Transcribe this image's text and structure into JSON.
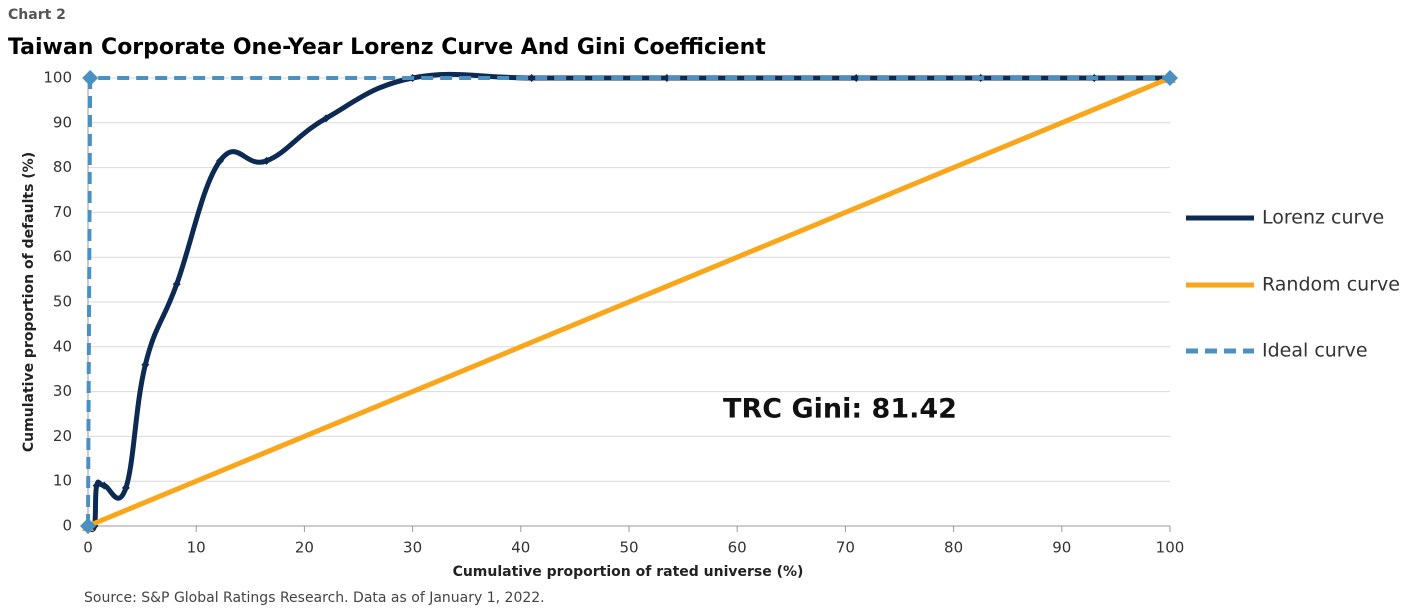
{
  "chart_data": {
    "type": "line",
    "kicker": "Chart 2",
    "title": "Taiwan Corporate One-Year Lorenz Curve And Gini Coefficient",
    "source": "Source: S&P Global Ratings Research. Data as of January 1, 2022.",
    "xlabel": "Cumulative proportion of rated universe (%)",
    "ylabel": "Cumulative proportion of defaults (%)",
    "annotation": "TRC Gini: 81.42",
    "xlim": [
      0,
      100
    ],
    "ylim": [
      0,
      100
    ],
    "xticks": [
      0,
      10,
      20,
      30,
      40,
      50,
      60,
      70,
      80,
      90,
      100
    ],
    "yticks": [
      0,
      10,
      20,
      30,
      40,
      50,
      60,
      70,
      80,
      90,
      100
    ],
    "grid": true,
    "legend": "right",
    "series": [
      {
        "name": "Lorenz curve",
        "color": "#0d2a52",
        "style": "solid",
        "marker": "diamond",
        "x": [
          0,
          0.6,
          0.8,
          1.5,
          3.5,
          5.3,
          8.2,
          12.2,
          16.5,
          22,
          30,
          41,
          53.5,
          71,
          82.5,
          93,
          100
        ],
        "values": [
          0,
          0,
          9,
          9,
          8.5,
          36,
          54,
          81.5,
          81.5,
          91,
          100,
          100,
          100,
          100,
          100,
          100,
          100
        ]
      },
      {
        "name": "Random curve",
        "color": "#f9a61a",
        "style": "solid",
        "marker": "triangle",
        "x": [
          0,
          100
        ],
        "values": [
          0,
          100
        ]
      },
      {
        "name": "Ideal curve",
        "color": "#4a90c0",
        "style": "dashed",
        "marker": "diamond-large",
        "x": [
          0,
          0.2,
          100
        ],
        "values": [
          0,
          100,
          100
        ]
      }
    ]
  }
}
